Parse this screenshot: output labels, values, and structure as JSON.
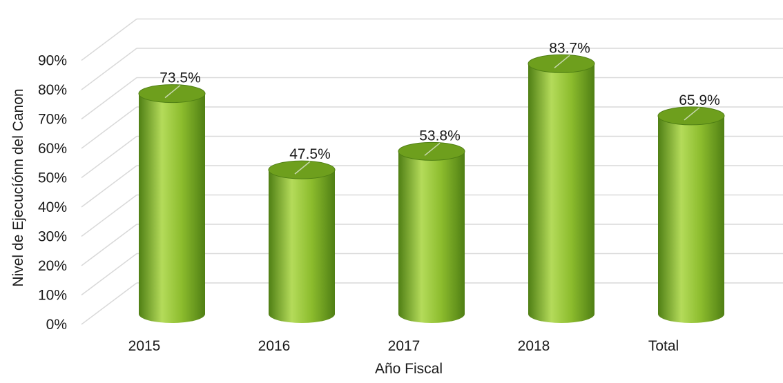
{
  "chart_data": {
    "type": "bar",
    "style": "3d-cylinder",
    "categories": [
      "2015",
      "2016",
      "2017",
      "2018",
      "Total"
    ],
    "values": [
      73.5,
      47.5,
      53.8,
      83.7,
      65.9
    ],
    "data_labels": [
      "73.5%",
      "47.5%",
      "53.8%",
      "83.7%",
      "65.9%"
    ],
    "xlabel": "Año Fiscal",
    "ylabel": "Nivel de Ejecucíónn del Canon",
    "ylim": [
      0,
      90
    ],
    "yticks": [
      "0%",
      "10%",
      "20%",
      "30%",
      "40%",
      "50%",
      "60%",
      "70%",
      "80%",
      "90%"
    ],
    "grid": true,
    "legend": "none",
    "colors": {
      "bar_dark": "#4f7f14",
      "bar_mid": "#8cbc2d",
      "bar_light": "#b4db5a",
      "bar_top": "#6e9f1d",
      "grid": "#d9d9d9"
    }
  }
}
